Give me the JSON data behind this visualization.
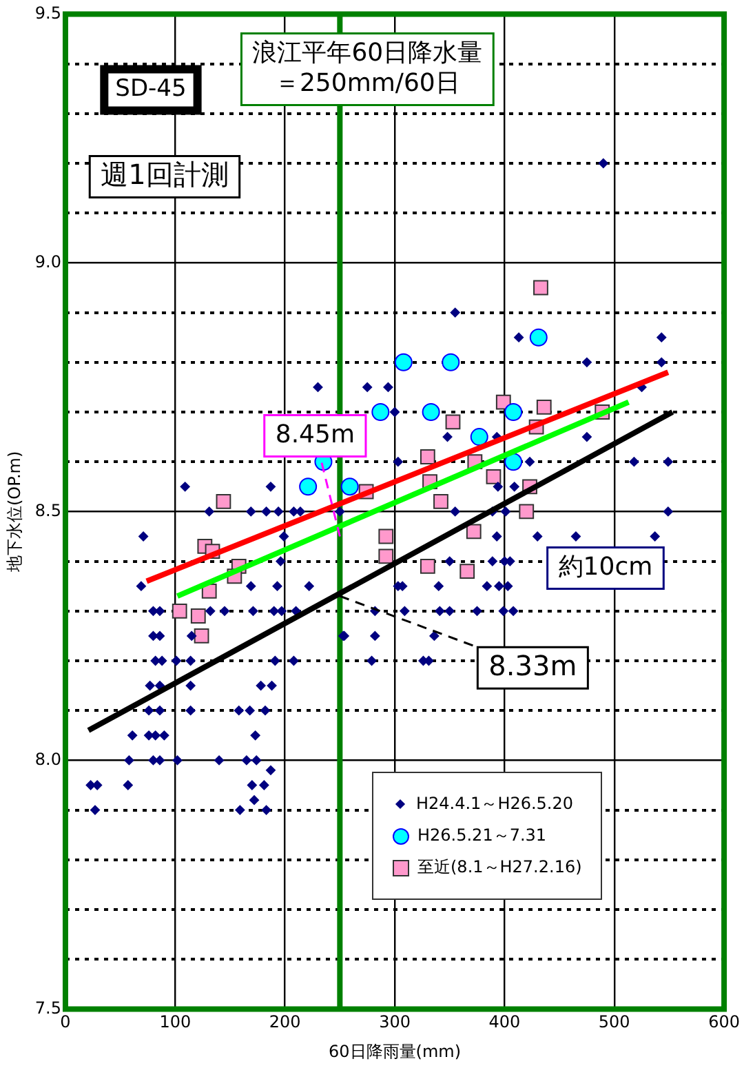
{
  "chart_data": {
    "type": "scatter",
    "xlabel": "60日降雨量(mm)",
    "ylabel": "地下水位(OP.m)",
    "xlim": [
      0,
      600
    ],
    "xticks": [
      0,
      100,
      200,
      300,
      400,
      500,
      600
    ],
    "ylim": [
      7.5,
      9.5
    ],
    "yticks": [
      7.5,
      {
        "value": 7.6,
        "label": null
      },
      {
        "value": 7.7,
        "label": null
      },
      {
        "value": 7.8,
        "label": null
      },
      {
        "value": 7.9,
        "label": null
      },
      {
        "value": 8.0,
        "label": "8.0"
      },
      {
        "value": 8.1,
        "label": null
      },
      {
        "value": 8.2,
        "label": null
      },
      {
        "value": 8.3,
        "label": null
      },
      {
        "value": 8.4,
        "label": null
      },
      8.5,
      {
        "value": 8.6,
        "label": null
      },
      {
        "value": 8.7,
        "label": null
      },
      {
        "value": 8.8,
        "label": null
      },
      {
        "value": 8.9,
        "label": null
      },
      {
        "value": 9.0,
        "label": "9.0"
      },
      {
        "value": 9.1,
        "label": null
      },
      {
        "value": 9.2,
        "label": null
      },
      {
        "value": 9.3,
        "label": null
      },
      {
        "value": 9.4,
        "label": null
      },
      9.5
    ],
    "grid": true,
    "legend": "bottom right",
    "series": [
      {
        "name": "H24.4.1～H26.5.20",
        "color": "#000080",
        "marker": "diamond",
        "x": [
          230,
          275,
          294,
          355,
          413,
          475,
          543,
          543,
          525,
          300,
          348,
          393,
          475,
          303,
          423,
          518,
          549,
          394,
          409,
          355,
          389,
          401,
          549,
          430,
          109,
          187,
          131,
          169,
          183,
          194,
          208,
          214,
          250,
          71,
          199,
          69,
          169,
          193,
          222,
          196,
          80,
          86,
          132,
          145,
          171,
          190,
          197,
          210,
          253,
          80,
          86,
          115,
          82,
          88,
          101,
          114,
          191,
          208,
          77,
          86,
          114,
          178,
          188,
          76,
          86,
          114,
          158,
          168,
          182,
          61,
          76,
          82,
          90,
          173,
          58,
          80,
          86,
          102,
          140,
          165,
          174,
          187,
          23,
          29,
          57,
          170,
          181,
          172,
          27,
          159,
          183,
          350,
          389,
          400,
          405,
          303,
          307,
          340,
          384,
          395,
          403,
          282,
          309,
          341,
          350,
          375,
          399,
          408,
          254,
          282,
          336,
          279,
          326,
          331,
          393,
          490,
          465,
          537
        ],
        "values": [
          8.75,
          8.75,
          8.75,
          8.9,
          8.85,
          8.8,
          8.85,
          8.8,
          8.75,
          8.7,
          8.65,
          8.65,
          8.65,
          8.6,
          8.6,
          8.6,
          8.6,
          8.55,
          8.55,
          8.5,
          8.5,
          8.5,
          8.5,
          8.45,
          8.55,
          8.55,
          8.5,
          8.5,
          8.5,
          8.5,
          8.5,
          8.5,
          8.5,
          8.45,
          8.45,
          8.35,
          8.35,
          8.35,
          8.35,
          8.4,
          8.3,
          8.3,
          8.3,
          8.3,
          8.3,
          8.3,
          8.3,
          8.3,
          8.25,
          8.25,
          8.25,
          8.25,
          8.2,
          8.2,
          8.2,
          8.2,
          8.2,
          8.2,
          8.15,
          8.15,
          8.15,
          8.15,
          8.15,
          8.1,
          8.1,
          8.1,
          8.1,
          8.1,
          8.1,
          8.05,
          8.05,
          8.05,
          8.05,
          8.05,
          8.0,
          8.0,
          8.0,
          8.0,
          8.0,
          8.0,
          8.0,
          7.98,
          7.95,
          7.95,
          7.95,
          7.95,
          7.95,
          7.92,
          7.9,
          7.9,
          7.9,
          8.4,
          8.4,
          8.4,
          8.4,
          8.35,
          8.35,
          8.35,
          8.35,
          8.35,
          8.35,
          8.3,
          8.3,
          8.3,
          8.3,
          8.3,
          8.3,
          8.3,
          8.25,
          8.25,
          8.25,
          8.2,
          8.2,
          8.2,
          8.45,
          9.2,
          8.45,
          8.45
        ]
      },
      {
        "name": "H26.5.21～7.31",
        "color": "#00ffff",
        "marker": "circle",
        "x": [
          308,
          351,
          431,
          287,
          333,
          408,
          377,
          408,
          235,
          221,
          259
        ],
        "values": [
          8.8,
          8.8,
          8.85,
          8.7,
          8.7,
          8.7,
          8.65,
          8.6,
          8.6,
          8.55,
          8.55
        ]
      },
      {
        "name": "至近(8.1～H27.2.16)",
        "color": "#ff99cc",
        "marker": "square",
        "x": [
          433,
          399,
          436,
          489,
          353,
          429,
          330,
          373,
          332,
          390,
          423,
          342,
          420,
          274,
          144,
          127,
          134,
          158,
          154,
          131,
          104,
          121,
          124,
          292,
          292,
          372,
          330,
          366
        ],
        "values": [
          8.95,
          8.72,
          8.71,
          8.7,
          8.68,
          8.67,
          8.61,
          8.6,
          8.56,
          8.57,
          8.55,
          8.52,
          8.5,
          8.54,
          8.52,
          8.43,
          8.42,
          8.39,
          8.37,
          8.34,
          8.3,
          8.29,
          8.25,
          8.45,
          8.41,
          8.46,
          8.39,
          8.38
        ]
      },
      {
        "type": "line",
        "color": "#ff0000",
        "marker": "none",
        "x": [
          74,
          549
        ],
        "values": [
          8.36,
          8.78
        ]
      },
      {
        "type": "line",
        "color": "#00ff00",
        "marker": "none",
        "x": [
          102,
          513
        ],
        "values": [
          8.33,
          8.72
        ]
      },
      {
        "type": "line",
        "color": "#000000",
        "marker": "none",
        "x": [
          21,
          553
        ],
        "values": [
          8.06,
          8.7
        ]
      }
    ],
    "ref_lines": [
      {
        "axis": "x",
        "value": 250,
        "label": "浪江平年60日降水量＝250mm/60日",
        "color": "#008000"
      }
    ],
    "annotations": [
      "SD-45",
      "週1回計測",
      {
        "text": "8.45m",
        "x": 250,
        "y": 8.45
      },
      {
        "text": "8.33m",
        "x": 250,
        "y": 8.33
      },
      "約10cm"
    ]
  }
}
